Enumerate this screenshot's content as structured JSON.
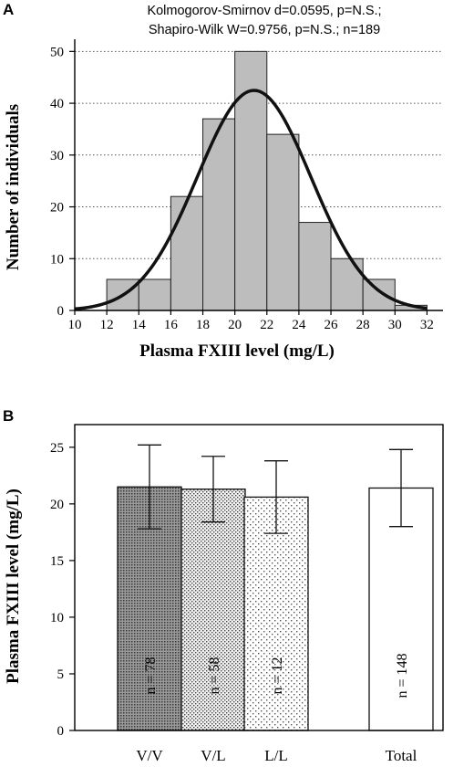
{
  "chart_data": [
    {
      "panel": "A",
      "type": "bar",
      "subtitle_lines": [
        "Kolmogorov-Smirnov d=0.0595, p=N.S.;",
        "Shapiro-Wilk W=0.9756, p=N.S.; n=189"
      ],
      "xlabel": "Plasma FXIII level (mg/L)",
      "ylabel": "Number of individuals",
      "xlim": [
        10,
        33
      ],
      "ylim": [
        0,
        52
      ],
      "x_ticks": [
        10,
        12,
        14,
        16,
        18,
        20,
        22,
        24,
        26,
        28,
        30,
        32
      ],
      "y_ticks": [
        0,
        10,
        20,
        30,
        40,
        50
      ],
      "bin_edges": [
        12,
        14,
        16,
        18,
        20,
        22,
        24,
        26,
        28,
        30,
        32
      ],
      "counts": [
        6,
        6,
        22,
        37,
        50,
        34,
        17,
        10,
        6,
        1
      ],
      "fit_curve": {
        "type": "normal",
        "mean": 21.2,
        "sd": 3.55,
        "n": 189,
        "bin_width": 2
      },
      "grid": "horizontal dotted"
    },
    {
      "panel": "B",
      "type": "bar",
      "ylabel": "Plasma FXIII level (mg/L)",
      "ylim": [
        0,
        27
      ],
      "y_ticks": [
        0,
        5,
        10,
        15,
        20,
        25
      ],
      "categories": [
        "V/V",
        "V/L",
        "L/L",
        "Total"
      ],
      "values": [
        21.5,
        21.3,
        20.6,
        21.4
      ],
      "error": [
        3.7,
        2.9,
        3.2,
        3.4
      ],
      "n_labels": [
        "n = 78",
        "n = 58",
        "n = 12",
        "n = 148"
      ],
      "fills": [
        "dense-dots",
        "medium-dots",
        "sparse-dots",
        "white"
      ]
    }
  ]
}
